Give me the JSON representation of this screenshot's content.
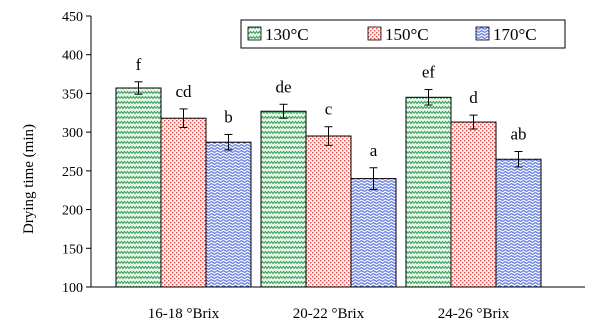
{
  "chart_data": {
    "type": "bar",
    "ylabel": "Drying time (min)",
    "ylim": [
      100,
      450
    ],
    "yticks": [
      100,
      150,
      200,
      250,
      300,
      350,
      400,
      450
    ],
    "categories": [
      "16-18 °Brix",
      "20-22 °Brix",
      "24-26 °Brix"
    ],
    "series": [
      {
        "name": "130°C",
        "color": "#2e9e4f",
        "pattern": "zigzag-green",
        "values": [
          357,
          327,
          345
        ],
        "errors": [
          8,
          9,
          10
        ],
        "labels": [
          "f",
          "de",
          "ef"
        ]
      },
      {
        "name": "150°C",
        "color": "#d9534f",
        "pattern": "dots-red",
        "values": [
          318,
          295,
          313
        ],
        "errors": [
          12,
          12,
          9
        ],
        "labels": [
          "cd",
          "c",
          "d"
        ]
      },
      {
        "name": "170°C",
        "color": "#3b5bdb",
        "pattern": "waves-blue",
        "values": [
          287,
          240,
          265
        ],
        "errors": [
          10,
          14,
          10
        ],
        "labels": [
          "b",
          "a",
          "ab"
        ]
      }
    ],
    "legend_position": "top-right",
    "grid": false
  }
}
